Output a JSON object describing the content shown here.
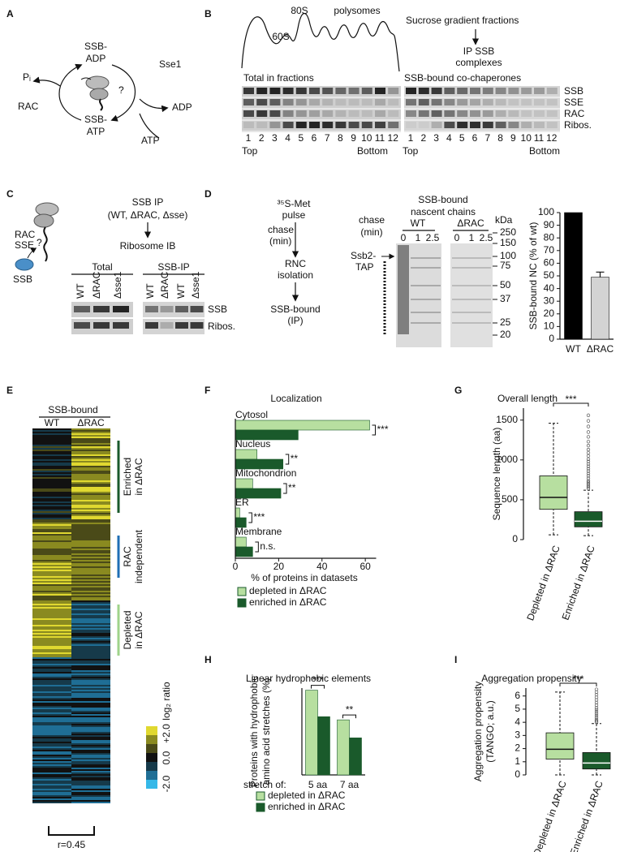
{
  "panel_labels": [
    "A",
    "B",
    "C",
    "D",
    "E",
    "F",
    "G",
    "H",
    "I"
  ],
  "panel_a": {
    "ssb_adp": [
      "SSB-",
      "ADP"
    ],
    "pi": "Pᵢ",
    "rac": "RAC",
    "question": "?",
    "sse1": "Sse1",
    "adp": "ADP",
    "ssb_atp": [
      "SSB-",
      "ATP"
    ],
    "atp": "ATP"
  },
  "panel_b": {
    "peaks": [
      "80S",
      "60S"
    ],
    "polysomes": "polysomes",
    "gradient": "Sucrose gradient fractions",
    "ip": [
      "IP SSB",
      "complexes"
    ],
    "total": "Total in fractions",
    "bound": "SSB-bound co-chaperones",
    "rows": [
      "SSB",
      "SSE",
      "RAC",
      "Ribos."
    ],
    "fractions": [
      1,
      2,
      3,
      4,
      5,
      6,
      7,
      8,
      9,
      10,
      11,
      12
    ],
    "ends": [
      "Top",
      "Bottom"
    ]
  },
  "panel_c": {
    "cartoon": [
      "RAC",
      "SSE",
      "?",
      "SSB"
    ],
    "steps": [
      "SSB IP",
      "(WT, ΔRAC, Δsse)",
      "Ribosome IB"
    ],
    "groups": [
      "Total",
      "SSB-IP"
    ],
    "lanes_total": [
      "WT",
      "ΔRAC",
      "Δsse1"
    ],
    "lanes_ip": [
      "WT",
      "ΔRAC",
      "WT",
      "Δsse1"
    ],
    "rows": [
      "SSB",
      "Ribos."
    ]
  },
  "panel_d": {
    "pulse": [
      "³⁵S-Met",
      "pulse"
    ],
    "chase": [
      "chase",
      "(min)"
    ],
    "rnc": [
      "RNC",
      "isolation"
    ],
    "ip": [
      "SSB-bound",
      "(IP)"
    ],
    "gel_title": [
      "SSB-bound",
      "nascent chains"
    ],
    "strains": [
      "WT",
      "ΔRAC"
    ],
    "times": [
      0,
      1,
      2.5
    ],
    "kda": "kDa",
    "markers": [
      250,
      150,
      100,
      75,
      50,
      37,
      25,
      20
    ],
    "band": [
      "Ssb2-",
      "TAP"
    ]
  },
  "panel_e": {
    "title": "SSB-bound",
    "columns": [
      "WT",
      "ΔRAC"
    ],
    "clusters": [
      [
        "Enriched",
        "in ΔRAC"
      ],
      [
        "RAC",
        "independent"
      ],
      [
        "Depleted",
        "in ΔRAC"
      ]
    ],
    "scale_title": "log₂ ratio",
    "scale_labels": [
      "+2.0",
      "0.0",
      "-2.0"
    ],
    "correlation": "r=0.45"
  },
  "chart_data": [
    {
      "type": "bar",
      "orientation": "vertical",
      "ylabel": "SSB-bound NC (% of wt)",
      "categories": [
        "WT",
        "ΔRAC"
      ],
      "values": [
        100,
        49
      ],
      "errors": [
        null,
        4
      ],
      "colors": [
        "#000000",
        "#d3d3d3"
      ],
      "ylim": [
        0,
        100
      ],
      "yticks": [
        0,
        10,
        20,
        30,
        40,
        50,
        60,
        70,
        80,
        90,
        100
      ]
    },
    {
      "type": "bar",
      "orientation": "horizontal",
      "title": "Localization",
      "categories": [
        "Cytosol",
        "Nucleus",
        "Mitochondrion",
        "ER",
        "Membrane"
      ],
      "series": [
        {
          "name": "depleted in ΔRAC",
          "color": "#b7dfa0",
          "values": [
            62,
            10,
            8,
            2,
            5
          ]
        },
        {
          "name": "enriched in ΔRAC",
          "color": "#1a5a2b",
          "values": [
            29,
            22,
            21,
            5,
            8
          ]
        }
      ],
      "significance": [
        "***",
        "**",
        "**",
        "***",
        "n.s."
      ],
      "xlabel": "% of proteins in datasets",
      "xlim": [
        0,
        65
      ],
      "xticks": [
        0,
        20,
        40,
        60
      ]
    },
    {
      "type": "box",
      "title": "Overall length",
      "ylabel": "Sequence length (aa)",
      "categories": [
        "Depleted in ΔRAC",
        "Enriched in ΔRAC"
      ],
      "colors": [
        "#b7dfa0",
        "#1a5a2b"
      ],
      "boxes": [
        {
          "whisker_low": 60,
          "q1": 380,
          "median": 530,
          "q3": 800,
          "whisker_high": 1460,
          "outliers": []
        },
        {
          "whisker_low": 50,
          "q1": 160,
          "median": 230,
          "q3": 350,
          "whisker_high": 620,
          "outliers": [
            640,
            660,
            680,
            700,
            720,
            740,
            770,
            800,
            830,
            860,
            890,
            920,
            950,
            980,
            1010,
            1050,
            1090,
            1130,
            1180,
            1230,
            1290,
            1350,
            1420,
            1490,
            1560
          ]
        }
      ],
      "significance": "***",
      "ylim": [
        0,
        1650
      ],
      "yticks": [
        0,
        500,
        1000,
        1500
      ]
    },
    {
      "type": "bar",
      "orientation": "vertical",
      "title": "Linear hydrophobic elements",
      "ylabel": [
        "Proteins with hydrophobic",
        "amino acid stretches (%)"
      ],
      "xlabel": "stretch of:",
      "categories": [
        "5 aa",
        "7 aa"
      ],
      "series": [
        {
          "name": "depleted in ΔRAC",
          "color": "#b7dfa0",
          "values": [
            80,
            52
          ]
        },
        {
          "name": "enriched in ΔRAC",
          "color": "#1a5a2b",
          "values": [
            55,
            35
          ]
        }
      ],
      "significance": [
        "***",
        "**"
      ],
      "ylim": [
        0,
        82
      ]
    },
    {
      "type": "box",
      "title": "Aggregation propensity",
      "ylabel": [
        "Aggregation propensity",
        "(TANGO; a.u.)"
      ],
      "categories": [
        "Depleted in ΔRAC",
        "Enriched in ΔRAC"
      ],
      "colors": [
        "#b7dfa0",
        "#1a5a2b"
      ],
      "boxes": [
        {
          "whisker_low": 0,
          "q1": 1.2,
          "median": 1.95,
          "q3": 3.2,
          "whisker_high": 6.3,
          "outliers": []
        },
        {
          "whisker_low": 0,
          "q1": 0.45,
          "median": 0.9,
          "q3": 1.7,
          "whisker_high": 3.9,
          "outliers": [
            4.0,
            4.1,
            4.2,
            4.35,
            4.5,
            4.65,
            4.8,
            4.95,
            5.1,
            5.3,
            5.5,
            5.7,
            5.9,
            6.1,
            6.3,
            6.5
          ]
        }
      ],
      "significance": "***",
      "ylim": [
        0,
        6.6
      ],
      "yticks": [
        0,
        1,
        2,
        3,
        4,
        5,
        6
      ]
    }
  ]
}
